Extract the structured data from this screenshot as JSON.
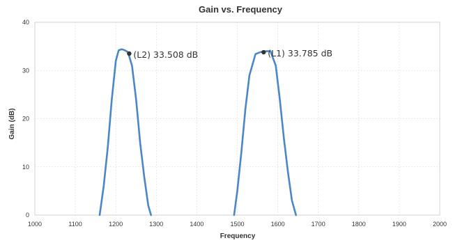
{
  "chart_data": {
    "type": "line",
    "title": "Gain vs. Frequency",
    "xlabel": "Frequency",
    "ylabel": "Gain (dB)",
    "xlim": [
      1000,
      2000
    ],
    "ylim": [
      0,
      40
    ],
    "x_ticks": [
      1000,
      1100,
      1200,
      1300,
      1400,
      1500,
      1600,
      1700,
      1800,
      1900,
      2000
    ],
    "y_ticks": [
      0,
      10,
      20,
      30,
      40
    ],
    "grid": true,
    "series": [
      {
        "color": "#4a86c8",
        "x": [
          1160,
          1170,
          1180,
          1190,
          1200,
          1207,
          1215,
          1222,
          1230,
          1240,
          1250,
          1260,
          1270,
          1280,
          1287
        ],
        "y": [
          0,
          6,
          14,
          24,
          32,
          34.2,
          34.4,
          34.2,
          33.8,
          31,
          24,
          15,
          8,
          2,
          0
        ]
      },
      {
        "color": "#4a86c8",
        "x": [
          1492,
          1500,
          1510,
          1520,
          1530,
          1545,
          1557,
          1570,
          1582,
          1595,
          1605,
          1615,
          1625,
          1635,
          1645
        ],
        "y": [
          0,
          5,
          13,
          22,
          29,
          33.4,
          33.8,
          34,
          34,
          31,
          24,
          16,
          9,
          3,
          0
        ]
      }
    ],
    "annotations": [
      {
        "label": "(L2) 33.508 dB",
        "x": 1233,
        "y": 33.508
      },
      {
        "label": "(L1) 33.785 dB",
        "x": 1565,
        "y": 33.785
      }
    ]
  }
}
